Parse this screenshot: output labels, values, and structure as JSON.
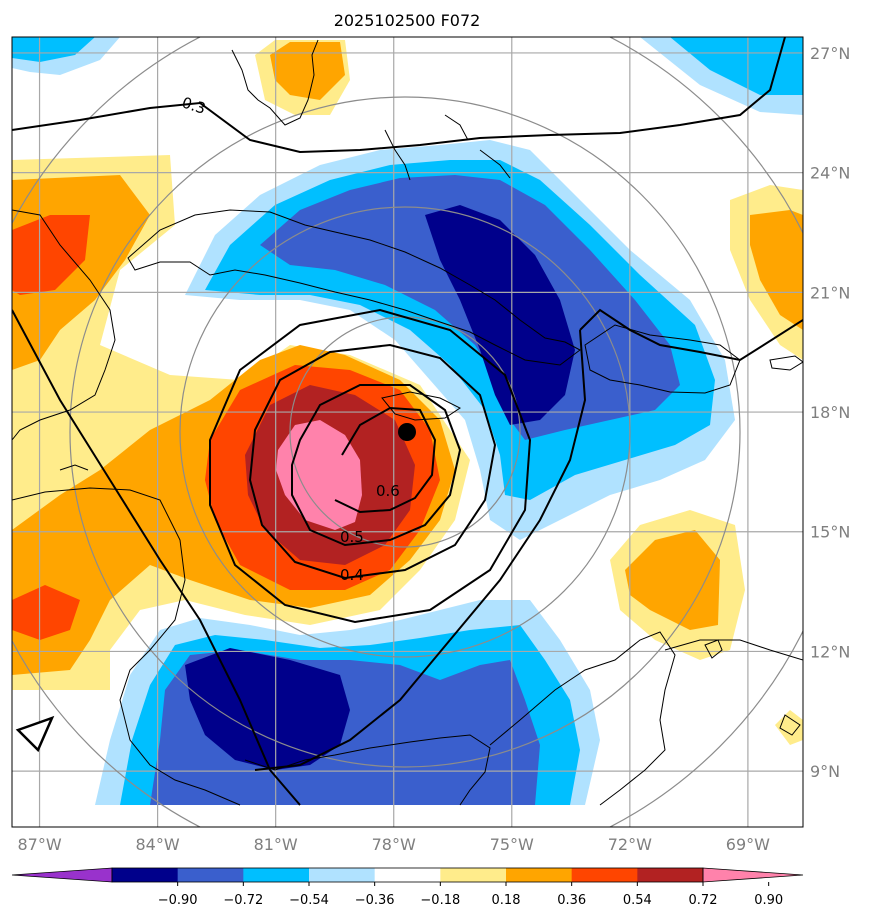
{
  "title": "2025102500 F072",
  "map": {
    "lat_ticks": [
      "27°N",
      "24°N",
      "21°N",
      "18°N",
      "15°N",
      "12°N",
      "9°N"
    ],
    "lon_ticks": [
      "87°W",
      "84°W",
      "81°W",
      "78°W",
      "75°W",
      "72°W",
      "69°W"
    ],
    "lat_values": [
      27,
      24,
      21,
      18,
      15,
      12,
      9
    ],
    "lon_values": [
      -87,
      -84,
      -81,
      -78,
      -75,
      -72,
      -69
    ],
    "extent": {
      "lon_min": -87.7,
      "lon_max": -67.6,
      "lat_min": 7.6,
      "lat_max": 27.4
    },
    "storm_center": {
      "lon": -77.97,
      "lat": 17.45
    },
    "contour_labels": [
      "0.3",
      "0.6",
      "0.5",
      "0.4"
    ]
  },
  "colorbar": {
    "labels": [
      "−0.90",
      "−0.72",
      "−0.54",
      "−0.36",
      "−0.18",
      "0.18",
      "0.36",
      "0.54",
      "0.72",
      "0.90"
    ],
    "colors": [
      "#9932cc",
      "#00008b",
      "#3a5fcd",
      "#00bfff",
      "#b0e2ff",
      "#ffffff",
      "#ffec8b",
      "#ffa500",
      "#ff4500",
      "#b22222",
      "#ff82ab"
    ]
  },
  "colors": {
    "grid": "#a8a8a8",
    "range_rings": "#8c8c8c",
    "coast": "#000000"
  }
}
